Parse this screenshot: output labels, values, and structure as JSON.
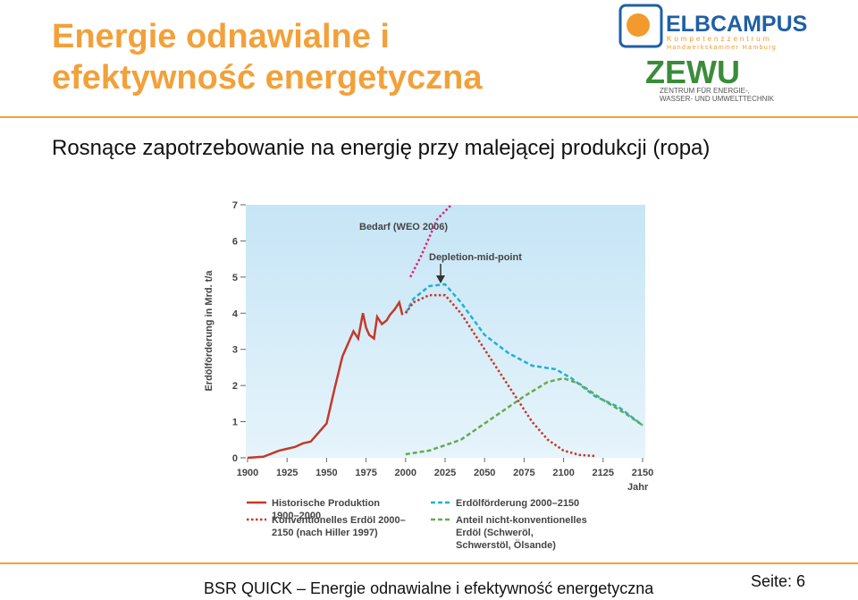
{
  "header": {
    "title": "Energie odnawialne i efektywność energetyczna",
    "logo1": {
      "name": "ELBCAMPUS",
      "line1": "Kompetenzzentrum",
      "line2": "Handwerkskammer Hamburg"
    },
    "logo2": {
      "name": "ZEWU",
      "line1": "ZENTRUM FÜR ENERGIE-,",
      "line2": "WASSER- UND UMWELTTECHNIK"
    }
  },
  "subtitle": "Rosnące zapotrzebowanie na energię przy malejącej produkcji (ropa)",
  "chart_data": {
    "type": "line",
    "y_label": "Erdölförderung in Mrd. t/a",
    "x_label": "Jahr",
    "xlim": [
      1900,
      2150
    ],
    "xticks": [
      1900,
      1925,
      1950,
      1975,
      2000,
      2025,
      2050,
      2075,
      2100,
      2125,
      2150
    ],
    "ylim": [
      0,
      7
    ],
    "yticks": [
      0,
      1,
      2,
      3,
      4,
      5,
      6,
      7
    ],
    "annotations": [
      "Bedarf (WEO 2006)",
      "Depletion-mid-point"
    ],
    "series": [
      {
        "name": "Historische Produktion 1900–2000",
        "color": "#c4392a",
        "dash": "solid",
        "x": [
          1900,
          1910,
          1920,
          1925,
          1930,
          1935,
          1940,
          1945,
          1950,
          1955,
          1960,
          1965,
          1967,
          1970,
          1973,
          1975,
          1977,
          1980,
          1982,
          1985,
          1988,
          1990,
          1993,
          1996,
          1998
        ],
        "values": [
          0,
          0.03,
          0.2,
          0.25,
          0.3,
          0.4,
          0.45,
          0.7,
          0.95,
          1.9,
          2.8,
          3.3,
          3.5,
          3.3,
          4.0,
          3.6,
          3.4,
          3.3,
          3.9,
          3.7,
          3.8,
          3.95,
          4.1,
          4.3,
          3.95
        ]
      },
      {
        "name": "Erdölförderung 2000–2150",
        "color": "#21b0d6",
        "dash": "dashed",
        "x": [
          2000,
          2005,
          2015,
          2025,
          2035,
          2050,
          2065,
          2080,
          2095,
          2105,
          2120,
          2135,
          2150
        ],
        "values": [
          4.0,
          4.4,
          4.75,
          4.8,
          4.3,
          3.4,
          2.9,
          2.55,
          2.45,
          2.2,
          1.7,
          1.4,
          0.9
        ]
      },
      {
        "name": "Konventionelles Erdöl 2000–2150 (nach Hiller 1997)",
        "color": "#c4392a",
        "dash": "dotted",
        "x": [
          2000,
          2005,
          2015,
          2025,
          2035,
          2050,
          2065,
          2080,
          2090,
          2100,
          2110,
          2120
        ],
        "values": [
          4.0,
          4.3,
          4.5,
          4.5,
          4.0,
          3.0,
          2.0,
          1.0,
          0.5,
          0.2,
          0.08,
          0.05
        ]
      },
      {
        "name": "Anteil nicht-konventionelles Erdöl (Schweröl, Schwerstöl, Ölsande)",
        "color": "#6aa84f",
        "dash": "dashed",
        "x": [
          2000,
          2015,
          2035,
          2055,
          2075,
          2090,
          2100,
          2110,
          2125,
          2140,
          2150
        ],
        "values": [
          0.1,
          0.2,
          0.5,
          1.1,
          1.7,
          2.1,
          2.2,
          2.05,
          1.6,
          1.2,
          0.9
        ]
      },
      {
        "name": "Bedarf (WEO 2006)",
        "color": "#d42a7c",
        "dash": "dotted",
        "in_legend": false,
        "x": [
          2003,
          2010,
          2020,
          2029
        ],
        "values": [
          5.0,
          5.6,
          6.6,
          7.0
        ]
      }
    ]
  },
  "footer": "BSR QUICK – Energie odnawialne i efektywność energetyczna",
  "page": "Seite: 6"
}
